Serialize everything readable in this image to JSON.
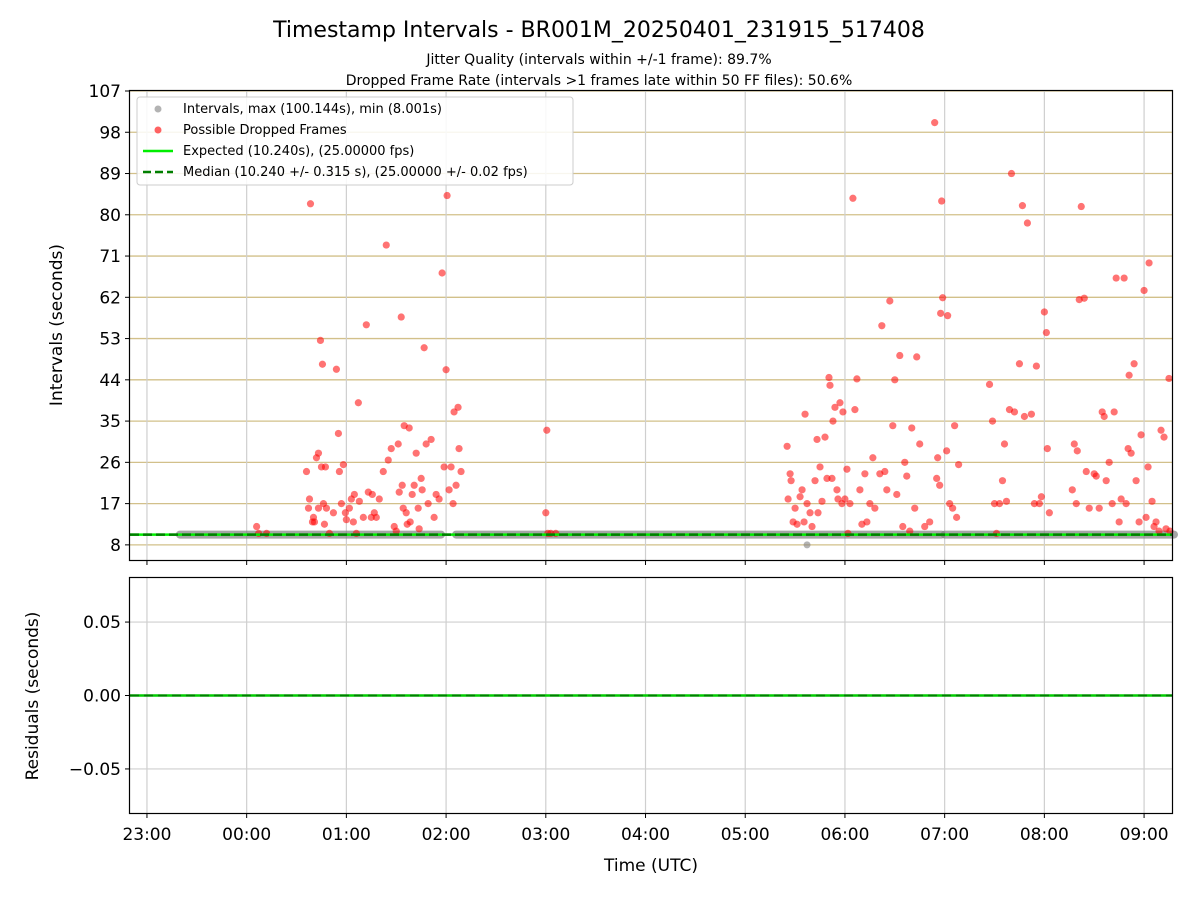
{
  "chart_data": [
    {
      "type": "scatter",
      "title": "Timestamp Intervals - BR001M_20250401_231915_517408",
      "subtitle_lines": [
        "Jitter Quality (intervals within +/-1 frame): 89.7%",
        "Dropped Frame Rate (intervals >1 frames late within 50 FF files): 50.6%"
      ],
      "ylabel": "Intervals (seconds)",
      "ylim": [
        4.7,
        107
      ],
      "yticks": [
        8,
        17,
        26,
        35,
        44,
        53,
        62,
        71,
        80,
        89,
        98,
        107
      ],
      "ytick_labels": [
        "8",
        "17",
        "26",
        "35",
        "44",
        "53",
        "62",
        "71",
        "80",
        "89",
        "98",
        "107"
      ],
      "x_unit": "hours relative to 00:00 UTC (axis runs 2025-03-31 22:50 to 2025-04-01 09:17)",
      "xlim": [
        -1.17,
        9.28
      ],
      "grid": "horizontal, tan",
      "legend_position": "upper-left",
      "legend": [
        {
          "label": "Intervals, max (100.144s), min (8.001s)",
          "kind": "marker",
          "color": "#a0a0a0"
        },
        {
          "label": "Possible Dropped Frames",
          "kind": "marker",
          "color": "#ff3b3b"
        },
        {
          "label": "Expected (10.240s), (25.00000 fps)",
          "kind": "line",
          "color": "#00ee00"
        },
        {
          "label": "Median (10.240 +/- 0.315 s), (25.00000 +/- 0.02 fps)",
          "kind": "dashed",
          "color": "#007f00"
        }
      ],
      "expected_interval": 10.24,
      "median_interval": 10.24,
      "series": [
        {
          "name": "Intervals, max (100.144s), min (8.001s)",
          "color": "#808080",
          "note": "continuous band at 10.24 s",
          "segments": [
            [
              -0.67,
              1.95
            ],
            [
              2.1,
              6.97
            ],
            [
              7.0,
              9.3
            ]
          ],
          "extra_points": [
            [
              5.62,
              8.0
            ]
          ]
        },
        {
          "name": "Possible Dropped Frames",
          "color": "#ff0000",
          "points": [
            [
              0.1,
              12
            ],
            [
              0.12,
              10.5
            ],
            [
              0.2,
              10.5
            ],
            [
              0.6,
              24
            ],
            [
              0.62,
              16
            ],
            [
              0.63,
              18
            ],
            [
              0.64,
              82.4
            ],
            [
              0.66,
              13
            ],
            [
              0.67,
              14
            ],
            [
              0.68,
              13
            ],
            [
              0.7,
              27
            ],
            [
              0.72,
              28
            ],
            [
              0.72,
              16
            ],
            [
              0.74,
              52.6
            ],
            [
              0.75,
              25
            ],
            [
              0.76,
              47.4
            ],
            [
              0.77,
              17
            ],
            [
              0.78,
              12.5
            ],
            [
              0.79,
              25
            ],
            [
              0.8,
              16
            ],
            [
              0.83,
              10.5
            ],
            [
              0.87,
              15
            ],
            [
              0.9,
              46.3
            ],
            [
              0.92,
              32.3
            ],
            [
              0.93,
              24
            ],
            [
              0.95,
              17
            ],
            [
              0.97,
              25.5
            ],
            [
              0.99,
              15
            ],
            [
              1.0,
              13.5
            ],
            [
              1.03,
              16
            ],
            [
              1.05,
              18
            ],
            [
              1.07,
              13
            ],
            [
              1.08,
              19
            ],
            [
              1.1,
              10.5
            ],
            [
              1.12,
              39
            ],
            [
              1.13,
              17.5
            ],
            [
              1.17,
              14
            ],
            [
              1.2,
              56
            ],
            [
              1.22,
              19.5
            ],
            [
              1.25,
              14
            ],
            [
              1.26,
              19
            ],
            [
              1.28,
              15
            ],
            [
              1.3,
              14
            ],
            [
              1.33,
              18
            ],
            [
              1.37,
              24
            ],
            [
              1.4,
              73.4
            ],
            [
              1.42,
              26.5
            ],
            [
              1.45,
              29
            ],
            [
              1.48,
              12
            ],
            [
              1.5,
              11
            ],
            [
              1.52,
              30
            ],
            [
              1.53,
              19.5
            ],
            [
              1.55,
              57.7
            ],
            [
              1.56,
              21
            ],
            [
              1.57,
              16
            ],
            [
              1.58,
              34
            ],
            [
              1.6,
              15
            ],
            [
              1.61,
              12.5
            ],
            [
              1.63,
              33.5
            ],
            [
              1.64,
              13
            ],
            [
              1.66,
              19
            ],
            [
              1.68,
              21
            ],
            [
              1.7,
              28
            ],
            [
              1.72,
              16
            ],
            [
              1.73,
              11.5
            ],
            [
              1.75,
              22.5
            ],
            [
              1.76,
              20
            ],
            [
              1.78,
              51
            ],
            [
              1.8,
              30
            ],
            [
              1.82,
              17
            ],
            [
              1.85,
              31
            ],
            [
              1.88,
              14
            ],
            [
              1.9,
              19
            ],
            [
              1.93,
              18
            ],
            [
              1.96,
              67.3
            ],
            [
              1.98,
              25
            ],
            [
              2.0,
              46.2
            ],
            [
              2.01,
              84.2
            ],
            [
              2.03,
              20
            ],
            [
              2.05,
              25
            ],
            [
              2.07,
              17
            ],
            [
              2.08,
              37
            ],
            [
              2.1,
              21
            ],
            [
              2.12,
              38
            ],
            [
              2.13,
              29
            ],
            [
              2.15,
              24
            ],
            [
              3.0,
              15
            ],
            [
              3.01,
              33
            ],
            [
              3.02,
              10.5
            ],
            [
              3.05,
              10.5
            ],
            [
              3.1,
              10.5
            ],
            [
              5.42,
              29.5
            ],
            [
              5.43,
              18
            ],
            [
              5.45,
              23.5
            ],
            [
              5.46,
              22
            ],
            [
              5.48,
              13
            ],
            [
              5.5,
              16
            ],
            [
              5.52,
              12.5
            ],
            [
              5.55,
              18.5
            ],
            [
              5.57,
              20
            ],
            [
              5.59,
              13
            ],
            [
              5.6,
              36.5
            ],
            [
              5.62,
              17
            ],
            [
              5.65,
              15
            ],
            [
              5.67,
              12
            ],
            [
              5.7,
              22
            ],
            [
              5.72,
              31
            ],
            [
              5.73,
              15
            ],
            [
              5.75,
              25
            ],
            [
              5.77,
              17.5
            ],
            [
              5.8,
              31.5
            ],
            [
              5.82,
              22.5
            ],
            [
              5.84,
              44.5
            ],
            [
              5.85,
              42.8
            ],
            [
              5.87,
              22.5
            ],
            [
              5.88,
              35
            ],
            [
              5.9,
              38
            ],
            [
              5.92,
              20
            ],
            [
              5.93,
              18
            ],
            [
              5.95,
              39
            ],
            [
              5.97,
              17
            ],
            [
              5.98,
              37
            ],
            [
              6.0,
              18
            ],
            [
              6.02,
              24.5
            ],
            [
              6.03,
              10.5
            ],
            [
              6.05,
              17
            ],
            [
              6.08,
              83.6
            ],
            [
              6.1,
              37.5
            ],
            [
              6.12,
              44.2
            ],
            [
              6.15,
              20
            ],
            [
              6.17,
              12.5
            ],
            [
              6.2,
              23.5
            ],
            [
              6.22,
              13
            ],
            [
              6.25,
              17
            ],
            [
              6.28,
              27
            ],
            [
              6.3,
              16
            ],
            [
              6.35,
              23.5
            ],
            [
              6.37,
              55.8
            ],
            [
              6.4,
              24
            ],
            [
              6.42,
              20
            ],
            [
              6.45,
              61.2
            ],
            [
              6.48,
              34
            ],
            [
              6.5,
              44
            ],
            [
              6.52,
              19
            ],
            [
              6.55,
              49.3
            ],
            [
              6.58,
              12
            ],
            [
              6.6,
              26
            ],
            [
              6.62,
              23
            ],
            [
              6.65,
              11
            ],
            [
              6.67,
              33.5
            ],
            [
              6.7,
              16
            ],
            [
              6.72,
              49
            ],
            [
              6.75,
              30
            ],
            [
              6.8,
              12
            ],
            [
              6.85,
              13
            ],
            [
              6.9,
              100.1
            ],
            [
              6.92,
              22.5
            ],
            [
              6.93,
              27
            ],
            [
              6.95,
              21
            ],
            [
              6.96,
              58.5
            ],
            [
              6.97,
              83
            ],
            [
              6.98,
              61.9
            ],
            [
              7.02,
              28.5
            ],
            [
              7.03,
              58
            ],
            [
              7.05,
              17
            ],
            [
              7.08,
              16
            ],
            [
              7.1,
              34
            ],
            [
              7.12,
              14
            ],
            [
              7.14,
              25.5
            ],
            [
              7.45,
              43
            ],
            [
              7.48,
              35
            ],
            [
              7.5,
              17
            ],
            [
              7.52,
              10.5
            ],
            [
              7.55,
              17
            ],
            [
              7.58,
              22
            ],
            [
              7.6,
              30
            ],
            [
              7.62,
              17.5
            ],
            [
              7.65,
              37.5
            ],
            [
              7.67,
              89
            ],
            [
              7.7,
              37
            ],
            [
              7.75,
              47.5
            ],
            [
              7.78,
              82
            ],
            [
              7.8,
              36
            ],
            [
              7.83,
              78.2
            ],
            [
              7.87,
              36.5
            ],
            [
              7.9,
              17
            ],
            [
              7.92,
              47
            ],
            [
              7.95,
              17
            ],
            [
              7.97,
              18.5
            ],
            [
              8.0,
              58.8
            ],
            [
              8.02,
              54.3
            ],
            [
              8.03,
              29
            ],
            [
              8.05,
              15
            ],
            [
              8.28,
              20
            ],
            [
              8.3,
              30
            ],
            [
              8.32,
              17
            ],
            [
              8.33,
              28.5
            ],
            [
              8.35,
              61.5
            ],
            [
              8.37,
              81.8
            ],
            [
              8.4,
              61.8
            ],
            [
              8.42,
              24
            ],
            [
              8.45,
              16
            ],
            [
              8.5,
              23.5
            ],
            [
              8.52,
              23
            ],
            [
              8.55,
              16
            ],
            [
              8.58,
              37
            ],
            [
              8.6,
              36
            ],
            [
              8.62,
              22
            ],
            [
              8.65,
              26
            ],
            [
              8.68,
              17
            ],
            [
              8.7,
              37
            ],
            [
              8.72,
              66.2
            ],
            [
              8.75,
              13
            ],
            [
              8.77,
              18
            ],
            [
              8.8,
              66.2
            ],
            [
              8.82,
              17
            ],
            [
              8.84,
              29
            ],
            [
              8.85,
              45
            ],
            [
              8.87,
              28
            ],
            [
              8.9,
              47.5
            ],
            [
              8.92,
              22
            ],
            [
              8.95,
              13
            ],
            [
              8.97,
              32
            ],
            [
              9.0,
              63.5
            ],
            [
              9.02,
              14
            ],
            [
              9.04,
              25
            ],
            [
              9.05,
              69.5
            ],
            [
              9.08,
              17.5
            ],
            [
              9.1,
              12
            ],
            [
              9.12,
              13
            ],
            [
              9.15,
              11
            ],
            [
              9.17,
              33
            ],
            [
              9.2,
              31.5
            ],
            [
              9.22,
              11.5
            ],
            [
              9.25,
              44.3
            ],
            [
              9.26,
              11
            ]
          ]
        }
      ]
    },
    {
      "type": "line",
      "ylabel": "Residuals (seconds)",
      "xlabel": "Time (UTC)",
      "ylim": [
        -0.08,
        0.08
      ],
      "yticks": [
        -0.05,
        0.0,
        0.05
      ],
      "ytick_labels": [
        "−0.05",
        "0.00",
        "0.05"
      ],
      "x_unit": "hours relative to 00:00 UTC",
      "xlim": [
        -1.17,
        9.28
      ],
      "xticks": [
        -1,
        0,
        1,
        2,
        3,
        4,
        5,
        6,
        7,
        8,
        9
      ],
      "xtick_labels": [
        "23:00",
        "00:00",
        "01:00",
        "02:00",
        "03:00",
        "04:00",
        "05:00",
        "06:00",
        "07:00",
        "08:00",
        "09:00"
      ],
      "grid": "both, light grey",
      "series": [
        {
          "name": "Residuals",
          "color": "#00cc00",
          "values_constant": 0.0
        }
      ]
    }
  ]
}
